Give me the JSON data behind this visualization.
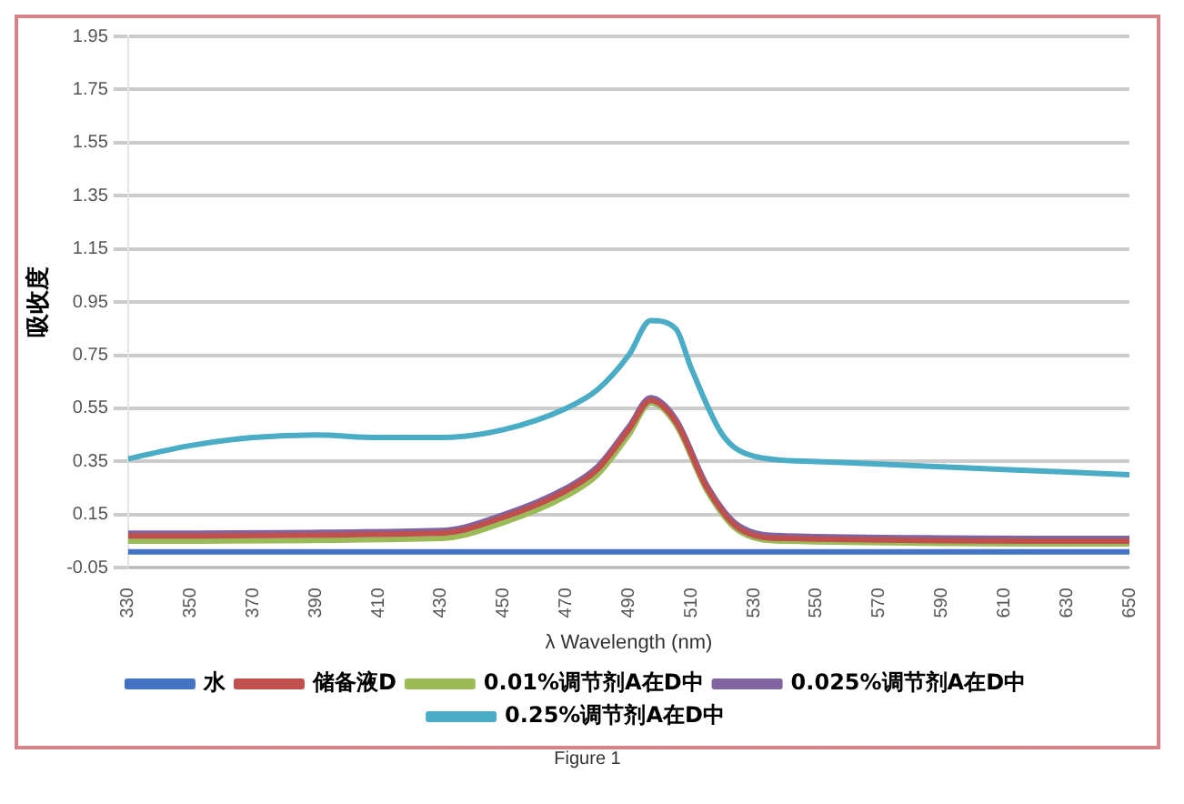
{
  "chart_data": {
    "type": "line",
    "xlabel": "λ Wavelength (nm)",
    "ylabel": "吸收度",
    "annotations": [
      "Figure 1"
    ],
    "xlim": [
      330,
      650
    ],
    "xticks": [
      330,
      350,
      370,
      390,
      410,
      430,
      450,
      470,
      490,
      510,
      530,
      550,
      570,
      590,
      610,
      630,
      650
    ],
    "ylim": [
      -0.05,
      1.95
    ],
    "yticks": [
      -0.05,
      0.15,
      0.35,
      0.55,
      0.75,
      0.95,
      1.15,
      1.35,
      1.55,
      1.75,
      1.95
    ],
    "grid": "y",
    "legend": "bottom",
    "marker": "none",
    "line_style": "solid",
    "series": [
      {
        "name": "水",
        "color": "#4472c4",
        "x": [
          330,
          650
        ],
        "values": [
          0.01,
          0.01
        ]
      },
      {
        "name": "储备液D",
        "color": "#c0504d",
        "x": [
          330,
          430,
          450,
          470,
          480,
          490,
          497,
          505,
          515,
          525,
          540,
          650
        ],
        "values": [
          0.07,
          0.08,
          0.14,
          0.24,
          0.32,
          0.47,
          0.58,
          0.5,
          0.25,
          0.1,
          0.06,
          0.05
        ]
      },
      {
        "name": "0.01%调节剂A在D中",
        "color": "#9bbb59",
        "x": [
          330,
          430,
          450,
          470,
          480,
          490,
          497,
          505,
          515,
          525,
          540,
          650
        ],
        "values": [
          0.05,
          0.06,
          0.12,
          0.22,
          0.3,
          0.45,
          0.57,
          0.49,
          0.24,
          0.09,
          0.05,
          0.04
        ]
      },
      {
        "name": "0.025%调节剂A在D中",
        "color": "#8064a2",
        "x": [
          330,
          430,
          450,
          470,
          480,
          490,
          497,
          505,
          515,
          525,
          540,
          650
        ],
        "values": [
          0.08,
          0.09,
          0.15,
          0.25,
          0.33,
          0.48,
          0.59,
          0.51,
          0.26,
          0.11,
          0.07,
          0.06
        ]
      },
      {
        "name": "0.25%调节剂A在D中",
        "color": "#4bacc6",
        "x": [
          330,
          350,
          370,
          390,
          410,
          430,
          450,
          470,
          480,
          490,
          497,
          505,
          510,
          520,
          530,
          550,
          570,
          590,
          610,
          630,
          650
        ],
        "values": [
          0.36,
          0.41,
          0.44,
          0.45,
          0.44,
          0.44,
          0.47,
          0.55,
          0.62,
          0.75,
          0.88,
          0.85,
          0.7,
          0.45,
          0.37,
          0.35,
          0.34,
          0.33,
          0.32,
          0.31,
          0.3
        ]
      }
    ]
  }
}
